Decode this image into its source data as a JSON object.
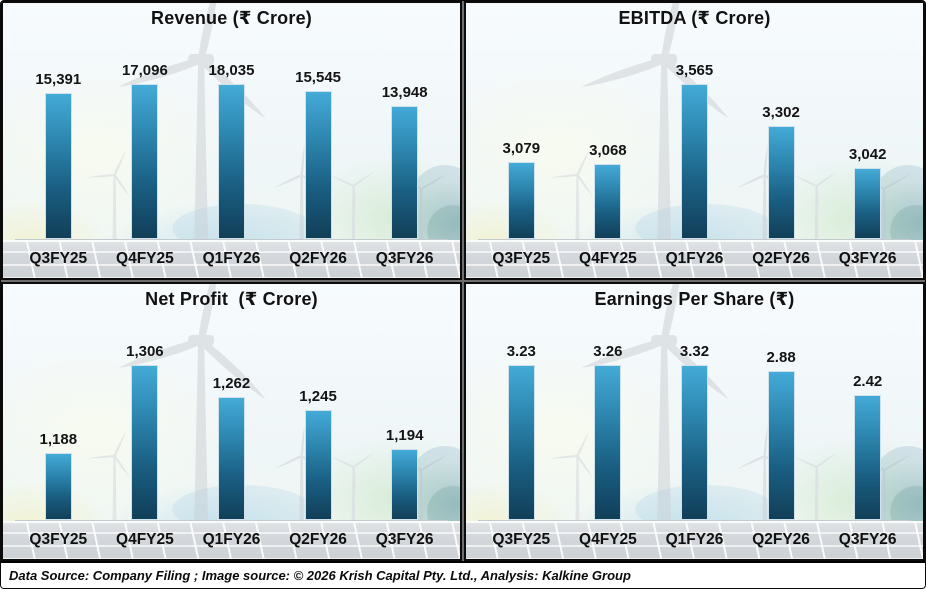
{
  "footer": {
    "text": "Data Source: Company Filing ; Image source: © 2026 Krish Capital Pty. Ltd., Analysis: Kalkine Group"
  },
  "colors": {
    "bar_gradient_top": "#44aad7",
    "bar_gradient_bottom": "#113f58",
    "label_text": "#141414",
    "panel_border": "#0b0b0b"
  },
  "chart_data": [
    {
      "type": "bar",
      "title": "Revenue (₹ Crore)",
      "categories": [
        "Q3FY25",
        "Q4FY25",
        "Q1FY26",
        "Q2FY26",
        "Q3FY26"
      ],
      "values": [
        15391,
        17096,
        18035,
        15545,
        13948
      ],
      "value_labels": [
        "15,391",
        "17,096",
        "18,035",
        "15,545",
        "13,948"
      ],
      "xlabel": "",
      "ylabel": "",
      "ylim": [
        0,
        18600
      ],
      "grid": false,
      "legend": false
    },
    {
      "type": "bar",
      "title": "EBITDA (₹ Crore)",
      "categories": [
        "Q3FY25",
        "Q4FY25",
        "Q1FY26",
        "Q2FY26",
        "Q3FY26"
      ],
      "values": [
        3079,
        3068,
        3565,
        3302,
        3042
      ],
      "value_labels": [
        "3,079",
        "3,068",
        "3,565",
        "3,302",
        "3,042"
      ],
      "xlabel": "",
      "ylabel": "",
      "ylim": [
        2600,
        3700
      ],
      "grid": false,
      "legend": false
    },
    {
      "type": "bar",
      "title": "Net Profit  (₹ Crore)",
      "categories": [
        "Q3FY25",
        "Q4FY25",
        "Q1FY26",
        "Q2FY26",
        "Q3FY26"
      ],
      "values": [
        1188,
        1306,
        1262,
        1245,
        1194
      ],
      "value_labels": [
        "1,188",
        "1,306",
        "1,262",
        "1,245",
        "1,194"
      ],
      "xlabel": "",
      "ylabel": "",
      "ylim": [
        1100,
        1333
      ],
      "grid": false,
      "legend": false
    },
    {
      "type": "bar",
      "title": "Earnings Per Share (₹)",
      "categories": [
        "Q3FY25",
        "Q4FY25",
        "Q1FY26",
        "Q2FY26",
        "Q3FY26"
      ],
      "values": [
        3.23,
        3.26,
        3.32,
        2.88,
        2.42
      ],
      "value_labels": [
        "3.23",
        "3.26",
        "3.32",
        "2.88",
        "2.42"
      ],
      "xlabel": "",
      "ylabel": "",
      "ylim": [
        0,
        3.42
      ],
      "grid": false,
      "legend": false
    }
  ]
}
